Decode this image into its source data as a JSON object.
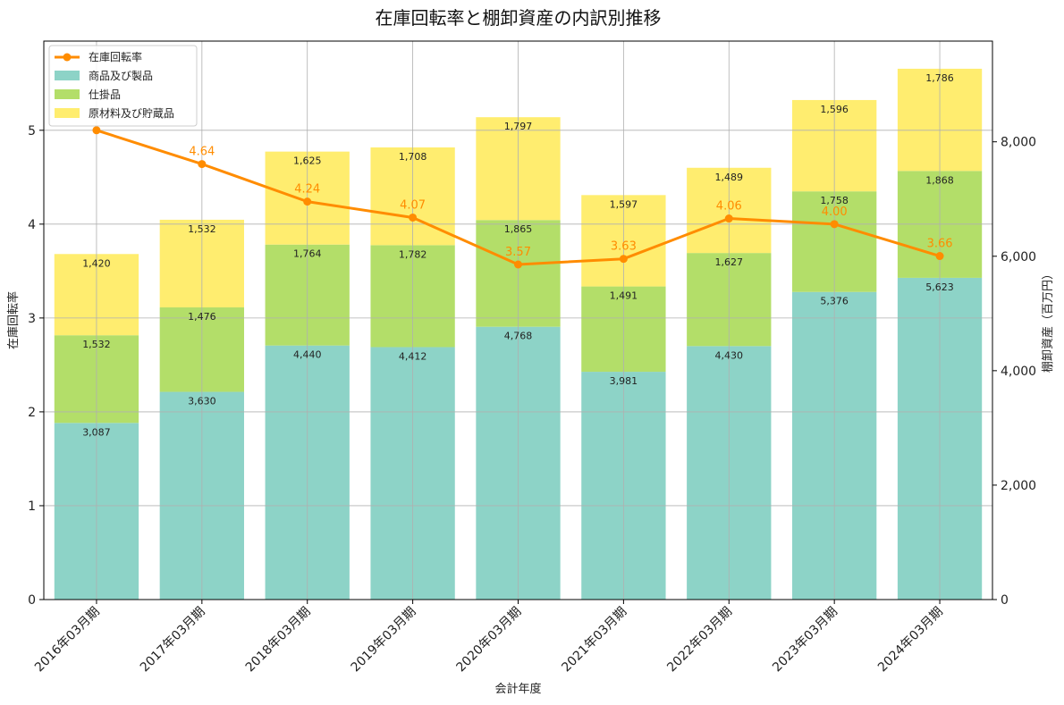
{
  "chart_data": {
    "type": "bar",
    "stacked": true,
    "title": "在庫回転率と棚卸資産の内訳別推移",
    "xlabel": "会計年度",
    "ylabel_left": "在庫回転率",
    "ylabel_right": "棚卸資産（百万円）",
    "categories": [
      "2016年03月期",
      "2017年03月期",
      "2018年03月期",
      "2019年03月期",
      "2020年03月期",
      "2021年03月期",
      "2022年03月期",
      "2023年03月期",
      "2024年03月期"
    ],
    "series": [
      {
        "name": "商品及び製品",
        "color": "#8dd3c7",
        "values": [
          3087,
          3630,
          4440,
          4412,
          4768,
          3981,
          4430,
          5376,
          5623
        ],
        "labels": [
          "3,087",
          "3,630",
          "4,440",
          "4,412",
          "4,768",
          "3,981",
          "4,430",
          "5,376",
          "5,623"
        ]
      },
      {
        "name": "仕掛品",
        "color": "#b3de69",
        "values": [
          1532,
          1476,
          1764,
          1782,
          1865,
          1491,
          1627,
          1758,
          1868
        ],
        "labels": [
          "1,532",
          "1,476",
          "1,764",
          "1,782",
          "1,865",
          "1,491",
          "1,627",
          "1,758",
          "1,868"
        ]
      },
      {
        "name": "原材料及び貯蔵品",
        "color": "#ffed6f",
        "values": [
          1420,
          1532,
          1625,
          1708,
          1797,
          1597,
          1489,
          1596,
          1786
        ],
        "labels": [
          "1,420",
          "1,532",
          "1,625",
          "1,708",
          "1,797",
          "1,597",
          "1,489",
          "1,596",
          "1,786"
        ]
      }
    ],
    "line": {
      "name": "在庫回転率",
      "color": "#ff8c00",
      "values": [
        5.0,
        4.64,
        4.24,
        4.07,
        3.57,
        3.63,
        4.06,
        4.0,
        3.66
      ],
      "labels": [
        "",
        "4.64",
        "4.24",
        "4.07",
        "3.57",
        "3.63",
        "4.06",
        "4.00",
        "3.66"
      ]
    },
    "ylim_left": [
      0,
      5.95
    ],
    "yticks_left": [
      0,
      1,
      2,
      3,
      4,
      5
    ],
    "ylim_right": [
      0,
      9760
    ],
    "yticks_right": [
      0,
      2000,
      4000,
      6000,
      8000
    ],
    "yticklabels_right": [
      "0",
      "2,000",
      "4,000",
      "6,000",
      "8,000"
    ],
    "grid": true,
    "legend_position": "top-left"
  }
}
